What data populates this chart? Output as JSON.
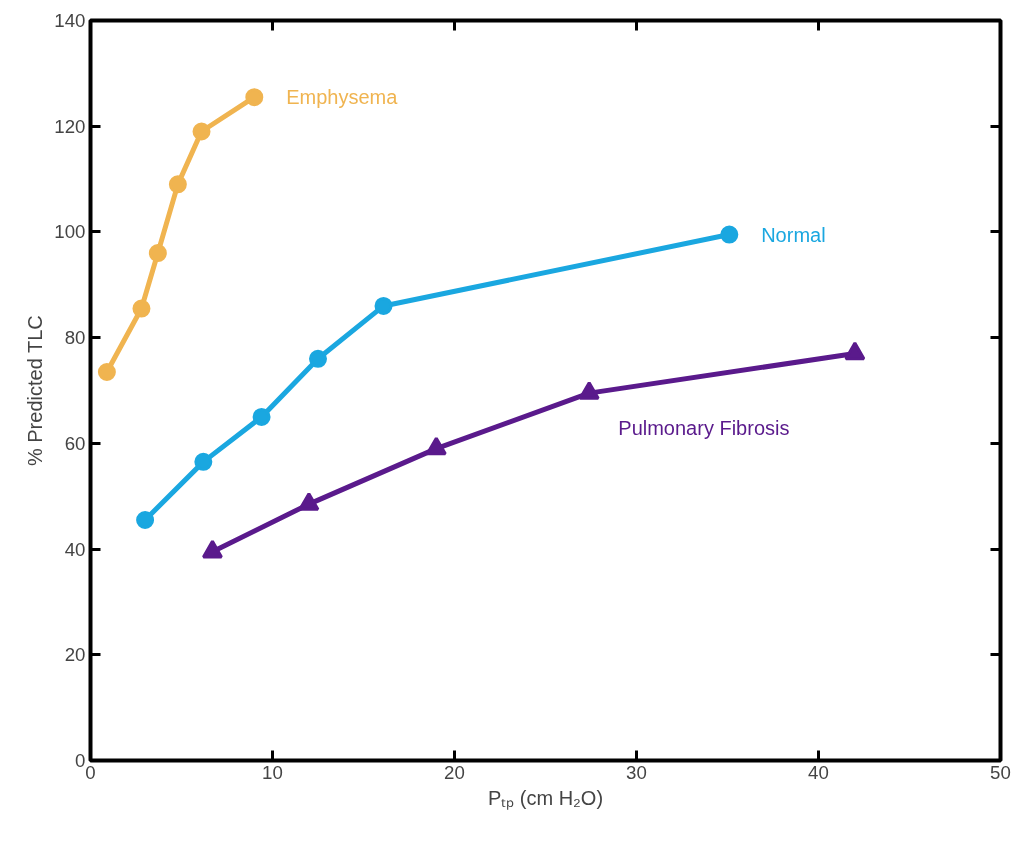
{
  "chart_data": {
    "type": "line",
    "xlabel": "Pₜₚ (cm H₂O)",
    "ylabel": "% Predicted TLC",
    "xlim": [
      0,
      50
    ],
    "ylim": [
      0,
      140
    ],
    "xticks": [
      0,
      10,
      20,
      30,
      40,
      50
    ],
    "yticks": [
      0,
      20,
      40,
      60,
      80,
      100,
      120,
      140
    ],
    "grid": false,
    "series": [
      {
        "name": "Emphysema",
        "color": "#f0b450",
        "marker": "circle",
        "x": [
          0.9,
          2.8,
          3.7,
          4.8,
          6.1,
          9.0
        ],
        "values": [
          73.5,
          85.5,
          96,
          109,
          119,
          125.5
        ]
      },
      {
        "name": "Normal",
        "color": "#1aa7e0",
        "marker": "circle",
        "x": [
          3.0,
          6.2,
          9.4,
          12.5,
          16.1,
          35.1
        ],
        "values": [
          45.5,
          56.5,
          65,
          76,
          86,
          99.5
        ]
      },
      {
        "name": "Pulmonary Fibrosis",
        "color": "#5a1a8c",
        "marker": "triangle",
        "x": [
          6.7,
          12.0,
          19.0,
          27.4,
          42.0
        ],
        "values": [
          39.5,
          48.5,
          59,
          69.5,
          77
        ]
      }
    ]
  }
}
